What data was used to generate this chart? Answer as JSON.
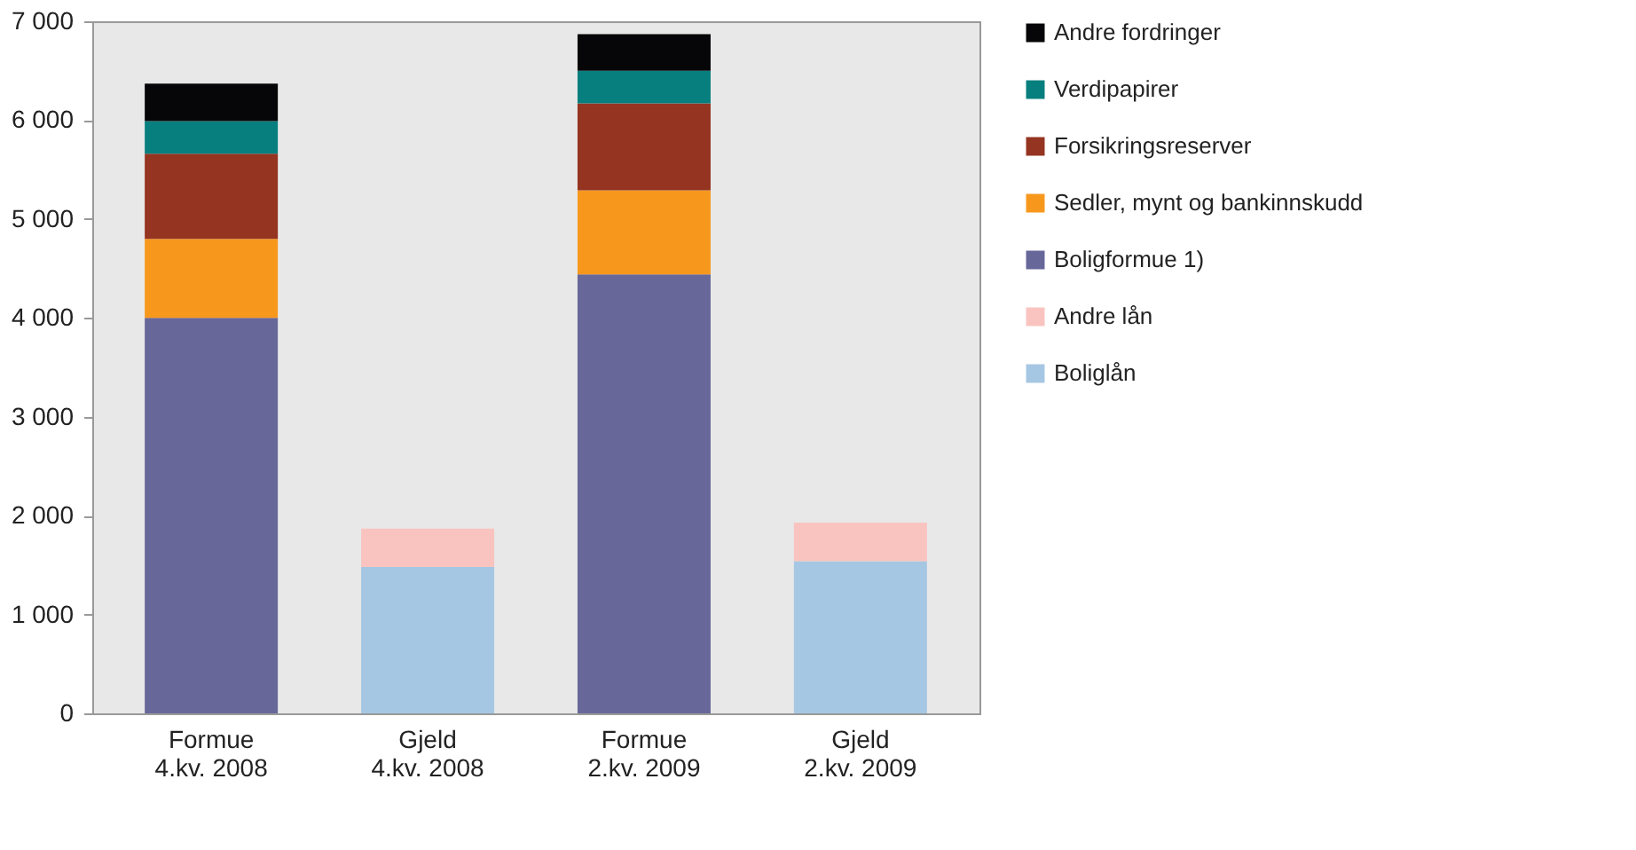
{
  "chart_data": {
    "type": "bar",
    "stacked": true,
    "categories": [
      "Formue\n4.kv. 2008",
      "Gjeld\n4.kv. 2008",
      "Formue\n2.kv. 2009",
      "Gjeld\n2.kv. 2009"
    ],
    "series": [
      {
        "name": "Boligformue 1)",
        "color": "#67679a",
        "values": [
          4000,
          null,
          4440,
          null
        ]
      },
      {
        "name": "Sedler, mynt og bankinnskudd",
        "color": "#f7981d",
        "values": [
          800,
          null,
          850,
          null
        ]
      },
      {
        "name": "Forsikringsreserver",
        "color": "#943421",
        "values": [
          860,
          null,
          880,
          null
        ]
      },
      {
        "name": "Verdipapirer",
        "color": "#077f7e",
        "values": [
          330,
          null,
          330,
          null
        ]
      },
      {
        "name": "Andre fordringer",
        "color": "#060608",
        "values": [
          380,
          null,
          370,
          null
        ]
      },
      {
        "name": "Boliglån",
        "color": "#a6c7e3",
        "values": [
          null,
          1480,
          null,
          1540
        ]
      },
      {
        "name": "Andre lån",
        "color": "#f9c4c0",
        "values": [
          null,
          390,
          null,
          390
        ]
      }
    ],
    "ylim": [
      0,
      7000
    ],
    "yticks": [
      0,
      {
        "value": 1000,
        "label": "1 000"
      },
      {
        "value": 2000,
        "label": "2 000"
      },
      {
        "value": 3000,
        "label": "3 000"
      },
      {
        "value": 4000,
        "label": "4 000"
      },
      {
        "value": 5000,
        "label": "5 000"
      },
      {
        "value": 6000,
        "label": "6 000"
      },
      {
        "value": 7000,
        "label": "7 000"
      }
    ],
    "grid": false,
    "legend": "right"
  }
}
